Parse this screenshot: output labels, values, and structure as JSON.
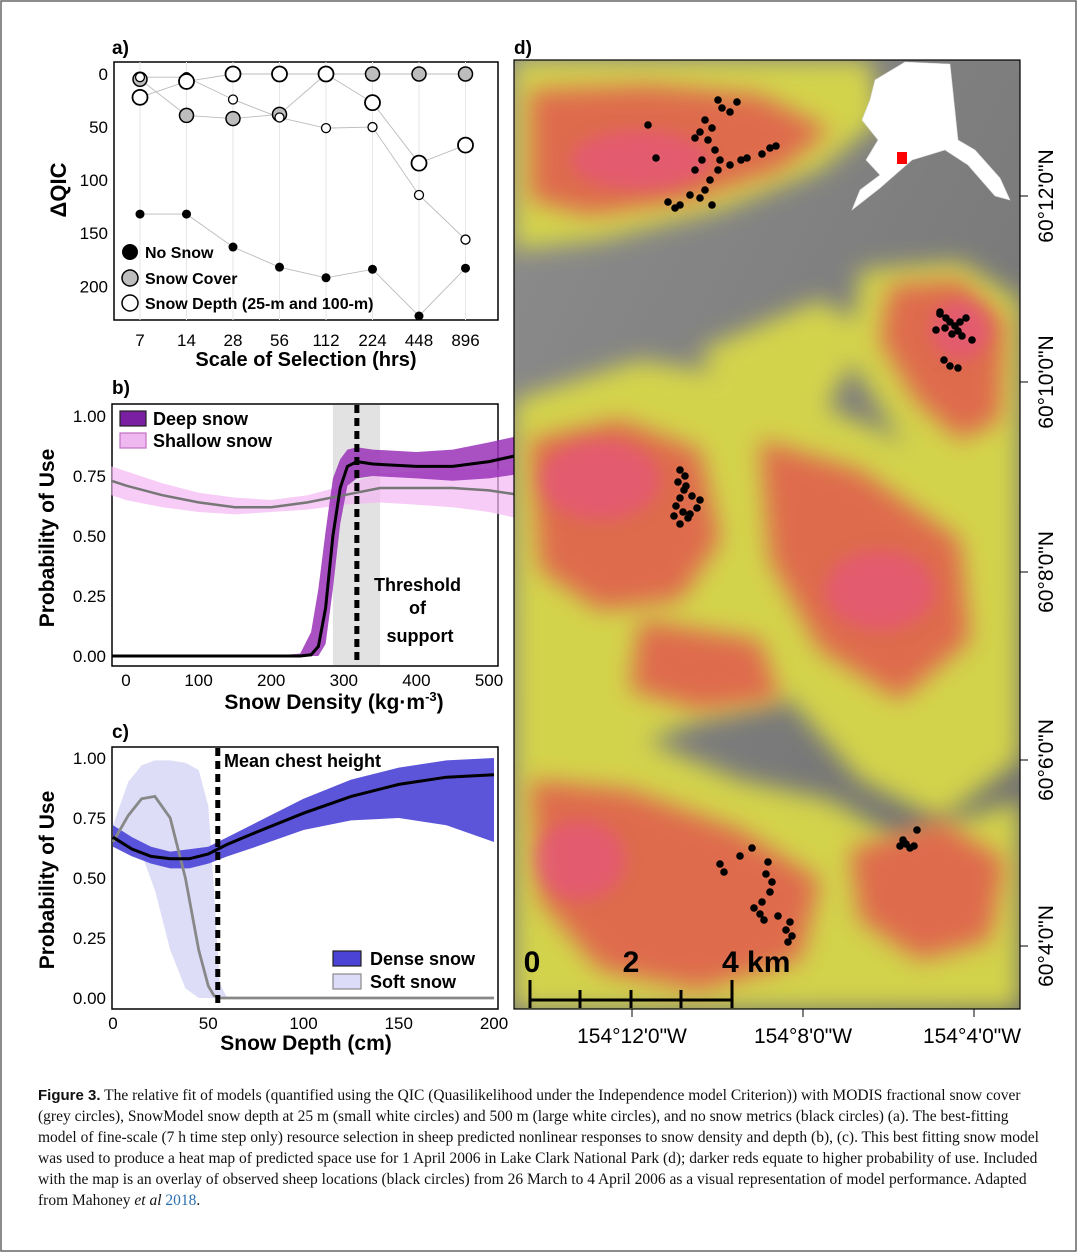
{
  "panel_a": {
    "label": "a)",
    "ylabel": "ΔQIC",
    "xlabel": "Scale of Selection (hrs)",
    "yticks": [
      "0",
      "50",
      "100",
      "150",
      "200"
    ],
    "legend": [
      "No Snow",
      "Snow Cover",
      "Snow Depth (25-m and 100-m)"
    ]
  },
  "panel_b": {
    "label": "b)",
    "ylabel": "Probability of Use",
    "xlabel_main": "Snow Density (kg·m",
    "xlabel_sup": "-3",
    "xlabel_end": ")",
    "yticks": [
      "0.00",
      "0.25",
      "0.50",
      "0.75",
      "1.00"
    ],
    "legend": [
      "Deep snow",
      "Shallow snow"
    ],
    "annotation": [
      "Threshold",
      "of",
      "support"
    ]
  },
  "panel_c": {
    "label": "c)",
    "ylabel": "Probability of Use",
    "xlabel": "Snow Depth (cm)",
    "yticks": [
      "0.00",
      "0.25",
      "0.50",
      "0.75",
      "1.00"
    ],
    "legend": [
      "Dense snow",
      "Soft snow"
    ],
    "annotation": "Mean chest height"
  },
  "panel_d": {
    "label": "d)",
    "lat_labels": [
      "60°12'0\"N",
      "60°10'0\"N",
      "60°8'0\"N",
      "60°6'0\"N",
      "60°4'0\"N"
    ],
    "lon_labels": [
      "154°12'0\"W",
      "154°8'0\"W",
      "154°4'0\"W"
    ],
    "scale_labels": [
      "0",
      "2",
      "4 km"
    ]
  },
  "caption": {
    "label": "Figure 3.",
    "text1": " The relative fit of models (quantified using the QIC (Quasilikelihood under the Independence model Criterion)) with MODIS fractional snow cover (grey circles), SnowModel snow depth at 25 m (small white circles) and 500 m (large white circles), and no snow metrics (black circles) (a). The best-fitting model of fine-scale (7 h time step only) resource selection in sheep predicted nonlinear responses to snow density and depth (b), (c). This best fitting snow model was used to produce a heat map of predicted space use for 1 April 2006 in Lake Clark National Park (d); darker reds equate to higher probability of use. Included with the map is an overlay of observed sheep locations (black circles) from 26 March to 4 April 2006 as a visual representation of model performance. Adapted from Mahoney ",
    "etal": "et al",
    "year": "2018",
    "end": "."
  },
  "chart_data": [
    {
      "type": "scatter",
      "panel": "a",
      "x": [
        "7",
        "14",
        "28",
        "56",
        "112",
        "224",
        "448",
        "896"
      ],
      "xlabel": "Scale of Selection (hrs)",
      "ylabel": "ΔQIC",
      "ylim": [
        0,
        225
      ],
      "y_reversed": true,
      "series": [
        {
          "name": "No Snow",
          "values": [
            132,
            132,
            163,
            182,
            192,
            184,
            228,
            183
          ]
        },
        {
          "name": "Snow Cover",
          "values": [
            5,
            39,
            42,
            38,
            0,
            0,
            0,
            0
          ]
        },
        {
          "name": "Snow Depth (25-m and 100-m)",
          "values": [
            3,
            3,
            24,
            41,
            51,
            50,
            114,
            156
          ]
        },
        {
          "name": "Snow Depth (25-m and 100-m)",
          "values": [
            22,
            7,
            0,
            0,
            0,
            27,
            84,
            67
          ]
        }
      ],
      "color": "#7a7a7a"
    },
    {
      "type": "line",
      "panel": "b",
      "xlabel": "Snow Density (kg·m-3)",
      "ylabel": "Probability of Use",
      "xlim": [
        -20,
        545
      ],
      "ylim": [
        0,
        1
      ],
      "threshold": 318,
      "threshold_band": [
        285,
        350
      ],
      "series": [
        {
          "name": "Deep snow",
          "x": [
            -20,
            200,
            240,
            255,
            265,
            275,
            285,
            295,
            305,
            318,
            340,
            400,
            450,
            500,
            545
          ],
          "values": [
            0,
            0,
            0,
            0.005,
            0.04,
            0.2,
            0.5,
            0.7,
            0.79,
            0.81,
            0.8,
            0.79,
            0.79,
            0.81,
            0.84
          ],
          "lower": [
            0,
            0,
            0,
            0,
            0,
            0.05,
            0.28,
            0.55,
            0.71,
            0.74,
            0.75,
            0.74,
            0.73,
            0.74,
            0.76
          ],
          "upper": [
            0,
            0,
            0.01,
            0.1,
            0.28,
            0.52,
            0.74,
            0.82,
            0.86,
            0.87,
            0.86,
            0.85,
            0.86,
            0.89,
            0.92
          ]
        },
        {
          "name": "Shallow snow",
          "x": [
            -20,
            0,
            50,
            100,
            150,
            200,
            250,
            300,
            350,
            400,
            450,
            500,
            545
          ],
          "values": [
            0.73,
            0.71,
            0.67,
            0.64,
            0.62,
            0.62,
            0.64,
            0.67,
            0.7,
            0.7,
            0.7,
            0.69,
            0.67
          ],
          "lower": [
            0.67,
            0.65,
            0.62,
            0.6,
            0.59,
            0.6,
            0.61,
            0.63,
            0.64,
            0.63,
            0.62,
            0.6,
            0.57
          ],
          "upper": [
            0.79,
            0.77,
            0.72,
            0.68,
            0.66,
            0.65,
            0.67,
            0.71,
            0.76,
            0.77,
            0.78,
            0.78,
            0.77
          ]
        }
      ]
    },
    {
      "type": "line",
      "panel": "c",
      "xlabel": "Snow Depth (cm)",
      "ylabel": "Probability of Use",
      "xlim": [
        0,
        200
      ],
      "ylim": [
        0,
        1
      ],
      "threshold": 55,
      "series": [
        {
          "name": "Dense snow",
          "x": [
            0,
            10,
            20,
            30,
            40,
            50,
            60,
            75,
            100,
            125,
            150,
            175,
            200
          ],
          "values": [
            0.67,
            0.62,
            0.59,
            0.58,
            0.58,
            0.6,
            0.64,
            0.69,
            0.77,
            0.84,
            0.89,
            0.92,
            0.93
          ],
          "lower": [
            0.63,
            0.59,
            0.56,
            0.54,
            0.54,
            0.56,
            0.59,
            0.63,
            0.7,
            0.74,
            0.75,
            0.72,
            0.65
          ],
          "upper": [
            0.72,
            0.67,
            0.63,
            0.61,
            0.62,
            0.63,
            0.67,
            0.73,
            0.83,
            0.91,
            0.96,
            0.99,
            1.0
          ]
        },
        {
          "name": "Soft snow",
          "x": [
            0,
            8,
            15,
            22,
            30,
            38,
            45,
            50,
            53,
            56,
            60,
            80,
            120,
            200
          ],
          "values": [
            0.65,
            0.76,
            0.83,
            0.84,
            0.75,
            0.5,
            0.2,
            0.05,
            0.01,
            0,
            0,
            0,
            0,
            0
          ],
          "lower": [
            0.63,
            0.63,
            0.6,
            0.45,
            0.2,
            0.04,
            0,
            0,
            0,
            0,
            0,
            0,
            0,
            0
          ],
          "upper": [
            0.72,
            0.9,
            0.97,
            0.99,
            0.99,
            0.98,
            0.95,
            0.8,
            0.45,
            0.06,
            0,
            0,
            0,
            0
          ]
        }
      ]
    }
  ]
}
